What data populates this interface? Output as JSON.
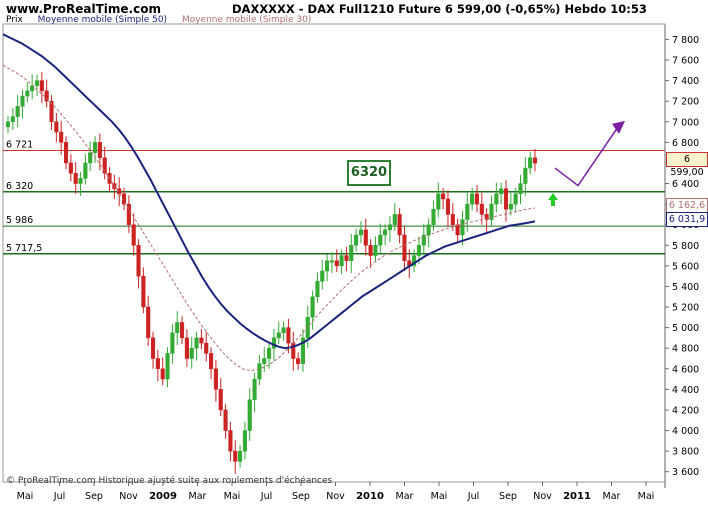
{
  "header": {
    "site": "www.ProRealTime.com",
    "ticker_line": "DAXXXXX - DAX Full1210 Future    6 599,00 (-0,65%)    Hebdo  10:53"
  },
  "legend": {
    "price_label": "Prix",
    "ma50_label": "Moyenne mobile (Simple 50)",
    "ma30_label": "Moyenne mobile (Simple 30)"
  },
  "footer": "© ProRealTime.com Historique ajusté suite aux roulements d'échéances",
  "annotation": "6320",
  "price_tags": {
    "last": "6 599,00",
    "ma30": "6 162,6",
    "ma50": "6 031,9"
  },
  "colors": {
    "up": "#33aa33",
    "down": "#cc2222",
    "ma50": "#1a237e",
    "ma30": "#b07070",
    "resistance": "#cc3333",
    "support": "#1b6e1b",
    "projection": "#7b1fa2"
  },
  "chart_data": {
    "type": "candlestick",
    "title": "DAXXXXX - DAX Full1210 Future",
    "ylim": [
      3500,
      7950
    ],
    "y_ticks": [
      3600,
      3800,
      4000,
      4200,
      4400,
      4600,
      4800,
      5000,
      5200,
      5400,
      5600,
      5800,
      6000,
      6200,
      6400,
      6600,
      6800,
      7000,
      7200,
      7400,
      7600,
      7800
    ],
    "y_tick_labels": [
      "3 600",
      "3 800",
      "4 000",
      "4 200",
      "4 400",
      "4 600",
      "4 800",
      "5 000",
      "5 200",
      "5 400",
      "5 600",
      "5 800",
      "6 000",
      "6 200",
      "6 400",
      "6 600",
      "6 800",
      "7 000",
      "7 200",
      "7 400",
      "7 600",
      "7 800"
    ],
    "x_ticks": [
      {
        "label": "Mai",
        "year": false
      },
      {
        "label": "Jul",
        "year": false
      },
      {
        "label": "Sep",
        "year": false
      },
      {
        "label": "Nov",
        "year": false
      },
      {
        "label": "2009",
        "year": true
      },
      {
        "label": "Mar",
        "year": false
      },
      {
        "label": "Mai",
        "year": false
      },
      {
        "label": "Jul",
        "year": false
      },
      {
        "label": "Sep",
        "year": false
      },
      {
        "label": "Nov",
        "year": false
      },
      {
        "label": "2010",
        "year": true
      },
      {
        "label": "Mar",
        "year": false
      },
      {
        "label": "Mai",
        "year": false
      },
      {
        "label": "Jul",
        "year": false
      },
      {
        "label": "Sep",
        "year": false
      },
      {
        "label": "Nov",
        "year": false
      },
      {
        "label": "2011",
        "year": true
      },
      {
        "label": "Mar",
        "year": false
      },
      {
        "label": "Mai",
        "year": false
      }
    ],
    "horizontal_levels": [
      {
        "label": "6 721",
        "value": 6721,
        "kind": "resistance"
      },
      {
        "label": "6 320",
        "value": 6320,
        "kind": "support"
      },
      {
        "label": "5 986",
        "value": 5986,
        "kind": "support-thin"
      },
      {
        "label": "5 717,5",
        "value": 5717.5,
        "kind": "support"
      }
    ],
    "close_series": [
      7000,
      7050,
      7150,
      7250,
      7300,
      7350,
      7400,
      7300,
      7200,
      7000,
      6900,
      6800,
      6600,
      6500,
      6400,
      6450,
      6600,
      6700,
      6800,
      6650,
      6500,
      6400,
      6350,
      6300,
      6200,
      6000,
      5800,
      5500,
      5200,
      4900,
      4700,
      4600,
      4500,
      4750,
      4950,
      5050,
      4900,
      4700,
      4800,
      4900,
      4850,
      4750,
      4600,
      4400,
      4200,
      4000,
      3800,
      3700,
      3800,
      4000,
      4300,
      4500,
      4650,
      4700,
      4800,
      4900,
      4950,
      5000,
      4850,
      4700,
      4650,
      4900,
      5100,
      5300,
      5450,
      5550,
      5650,
      5650,
      5600,
      5700,
      5650,
      5800,
      5900,
      5950,
      5800,
      5700,
      5800,
      5900,
      5950,
      6000,
      6100,
      5900,
      5650,
      5600,
      5700,
      5800,
      5900,
      6000,
      6150,
      6300,
      6250,
      6100,
      6000,
      5900,
      6050,
      6200,
      6300,
      6200,
      6100,
      6050,
      6200,
      6300,
      6350,
      6150,
      6200,
      6300,
      6400,
      6550,
      6650,
      6599
    ],
    "ma50_series": [
      7850,
      7820,
      7790,
      7760,
      7720,
      7680,
      7640,
      7590,
      7540,
      7480,
      7420,
      7360,
      7300,
      7240,
      7180,
      7120,
      7060,
      7000,
      6930,
      6850,
      6760,
      6660,
      6550,
      6440,
      6320,
      6200,
      6080,
      5960,
      5840,
      5720,
      5610,
      5500,
      5400,
      5310,
      5230,
      5160,
      5100,
      5040,
      4990,
      4945,
      4905,
      4870,
      4840,
      4815,
      4800,
      4810,
      4830,
      4860,
      4900,
      4950,
      5000,
      5050,
      5100,
      5150,
      5200,
      5250,
      5300,
      5340,
      5380,
      5420,
      5460,
      5500,
      5540,
      5580,
      5620,
      5660,
      5700,
      5730,
      5760,
      5790,
      5810,
      5830,
      5850,
      5870,
      5890,
      5910,
      5930,
      5950,
      5970,
      5990,
      6000,
      6010,
      6020,
      6031.9
    ],
    "ma30_series": [
      7550,
      7500,
      7450,
      7380,
      7300,
      7220,
      7130,
      7030,
      6930,
      6820,
      6700,
      6580,
      6450,
      6320,
      6180,
      6040,
      5900,
      5760,
      5620,
      5480,
      5340,
      5200,
      5070,
      4950,
      4840,
      4740,
      4660,
      4600,
      4580,
      4600,
      4640,
      4700,
      4780,
      4870,
      4970,
      5070,
      5170,
      5260,
      5350,
      5430,
      5510,
      5580,
      5640,
      5700,
      5750,
      5790,
      5830,
      5870,
      5900,
      5930,
      5960,
      5990,
      6010,
      6030,
      6050,
      6070,
      6090,
      6110,
      6130,
      6150,
      6162.6
    ]
  }
}
